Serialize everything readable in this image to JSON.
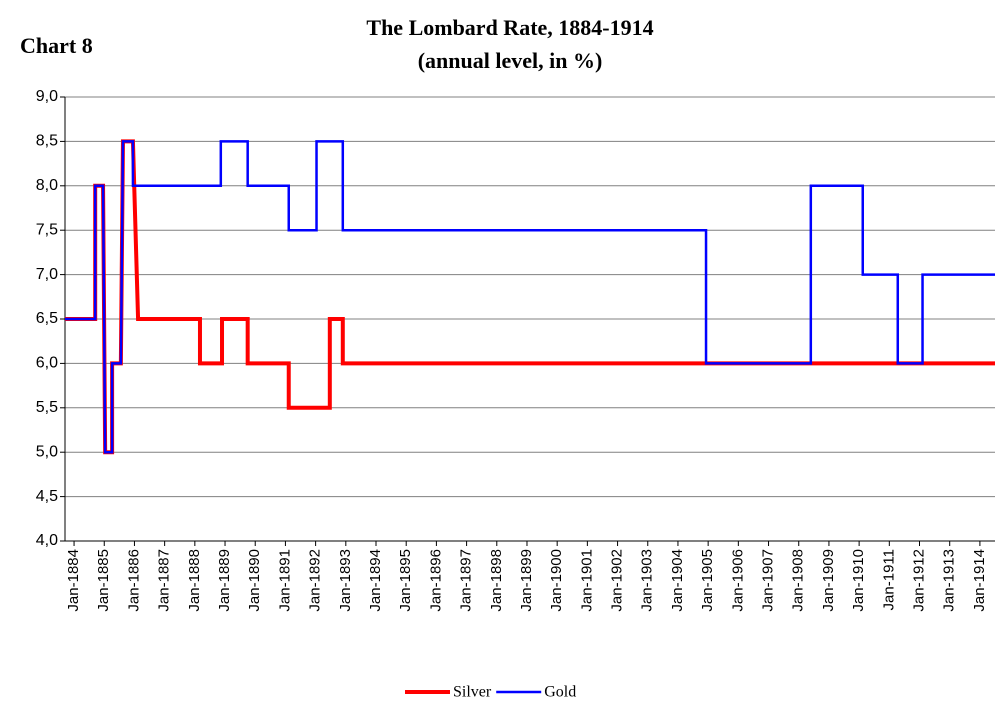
{
  "chart_data": {
    "type": "line",
    "label": "Chart 8",
    "title": "The Lombard Rate, 1884-1914",
    "subtitle": "(annual level, in %)",
    "xlim": [
      1883.7,
      1914.5
    ],
    "xticks": [
      {
        "value": 1884,
        "label": "Jan-1884"
      },
      {
        "value": 1885,
        "label": "Jan-1885"
      },
      {
        "value": 1886,
        "label": "Jan-1886"
      },
      {
        "value": 1887,
        "label": "Jan-1887"
      },
      {
        "value": 1888,
        "label": "Jan-1888"
      },
      {
        "value": 1889,
        "label": "Jan-1889"
      },
      {
        "value": 1890,
        "label": "Jan-1890"
      },
      {
        "value": 1891,
        "label": "Jan-1891"
      },
      {
        "value": 1892,
        "label": "Jan-1892"
      },
      {
        "value": 1893,
        "label": "Jan-1893"
      },
      {
        "value": 1894,
        "label": "Jan-1894"
      },
      {
        "value": 1895,
        "label": "Jan-1895"
      },
      {
        "value": 1896,
        "label": "Jan-1896"
      },
      {
        "value": 1897,
        "label": "Jan-1897"
      },
      {
        "value": 1898,
        "label": "Jan-1898"
      },
      {
        "value": 1899,
        "label": "Jan-1899"
      },
      {
        "value": 1900,
        "label": "Jan-1900"
      },
      {
        "value": 1901,
        "label": "Jan-1901"
      },
      {
        "value": 1902,
        "label": "Jan-1902"
      },
      {
        "value": 1903,
        "label": "Jan-1903"
      },
      {
        "value": 1904,
        "label": "Jan-1904"
      },
      {
        "value": 1905,
        "label": "Jan-1905"
      },
      {
        "value": 1906,
        "label": "Jan-1906"
      },
      {
        "value": 1907,
        "label": "Jan-1907"
      },
      {
        "value": 1908,
        "label": "Jan-1908"
      },
      {
        "value": 1909,
        "label": "Jan-1909"
      },
      {
        "value": 1910,
        "label": "Jan-1910"
      },
      {
        "value": 1911,
        "label": "Jan-1911"
      },
      {
        "value": 1912,
        "label": "Jan-1912"
      },
      {
        "value": 1913,
        "label": "Jan-1913"
      },
      {
        "value": 1914,
        "label": "Jan-1914"
      }
    ],
    "ylim": [
      4,
      9
    ],
    "yticks": [
      {
        "value": 4,
        "label": "4,0"
      },
      {
        "value": 4.5,
        "label": "4,5"
      },
      {
        "value": 5,
        "label": "5,0"
      },
      {
        "value": 5.5,
        "label": "5,5"
      },
      {
        "value": 6,
        "label": "6,0"
      },
      {
        "value": 6.5,
        "label": "6,5"
      },
      {
        "value": 7,
        "label": "7,0"
      },
      {
        "value": 7.5,
        "label": "7,5"
      },
      {
        "value": 8,
        "label": "8,0"
      },
      {
        "value": 8.5,
        "label": "8,5"
      },
      {
        "value": 9,
        "label": "9,0"
      }
    ],
    "grid": true,
    "series": [
      {
        "name": "Silver",
        "color": "#ff0000",
        "x": [
          1883.7,
          1884.7,
          1884.7,
          1884.96,
          1885.03,
          1885.26,
          1885.26,
          1885.55,
          1885.62,
          1885.95,
          1886.12,
          1888.17,
          1888.17,
          1888.9,
          1888.9,
          1889.75,
          1889.75,
          1891.11,
          1891.11,
          1892.47,
          1892.47,
          1892.9,
          1892.9,
          1914.5
        ],
        "values": [
          6.5,
          6.5,
          8,
          8,
          5,
          5,
          6,
          6,
          8.5,
          8.5,
          6.5,
          6.5,
          6,
          6,
          6.5,
          6.5,
          6,
          6,
          5.5,
          5.5,
          6.5,
          6.5,
          6,
          6
        ]
      },
      {
        "name": "Gold",
        "color": "#0000ff",
        "x": [
          1883.7,
          1884.7,
          1884.7,
          1884.96,
          1885.03,
          1885.26,
          1885.26,
          1885.55,
          1885.62,
          1885.95,
          1885.95,
          1888.86,
          1888.86,
          1889.75,
          1889.75,
          1891.11,
          1891.11,
          1892.03,
          1892.03,
          1892.9,
          1892.9,
          1904.93,
          1904.93,
          1908.4,
          1908.4,
          1910.12,
          1910.12,
          1911.28,
          1911.28,
          1912.1,
          1912.1,
          1914.5
        ],
        "values": [
          6.5,
          6.5,
          8,
          8,
          5,
          5,
          6,
          6,
          8.5,
          8.5,
          8,
          8,
          8.5,
          8.5,
          8,
          8,
          7.5,
          7.5,
          8.5,
          8.5,
          7.5,
          7.5,
          6,
          6,
          8,
          8,
          7,
          7,
          6,
          6,
          7,
          7
        ]
      }
    ]
  }
}
